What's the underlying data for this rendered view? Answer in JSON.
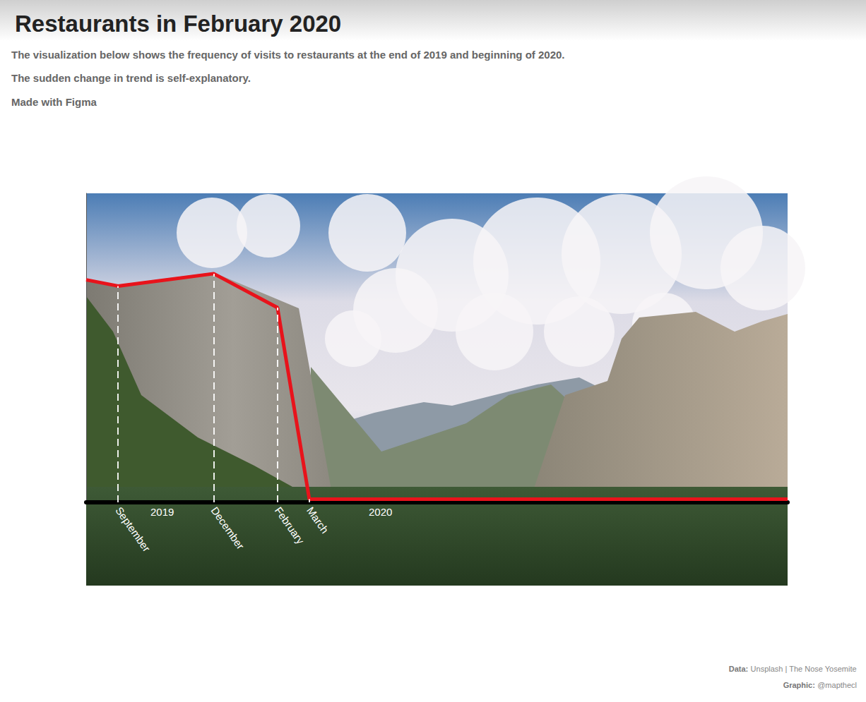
{
  "chart_data": {
    "type": "line",
    "title": "Restaurants in February 2020",
    "subtitle": [
      "The visualization below shows the frequency of visits to restaurants at the end of 2019 and beginning of 2020.",
      "The sudden change in trend is self-explanatory.",
      "Made with Figma"
    ],
    "annotations": [
      "2019",
      "2020"
    ],
    "source": [
      {
        "label": "Data:",
        "text": "Unsplash | The Nose Yosemite"
      },
      {
        "label": "Graphic:",
        "text": "@mapthecl"
      }
    ],
    "x": [
      8,
      9,
      12,
      14,
      15,
      30
    ],
    "values": [
      72,
      70,
      74,
      63,
      1,
      1
    ],
    "color": "#e8131b",
    "xlim": [
      8,
      30
    ],
    "xticks": [
      {
        "value": 9,
        "label": "September"
      },
      {
        "value": 12,
        "label": "December"
      },
      {
        "value": 14,
        "label": "February"
      },
      {
        "value": 15,
        "label": "March"
      }
    ],
    "ylim": [
      0,
      100
    ],
    "tick_labels": "x",
    "grid": false,
    "marker": "none",
    "line_style": "solid"
  }
}
